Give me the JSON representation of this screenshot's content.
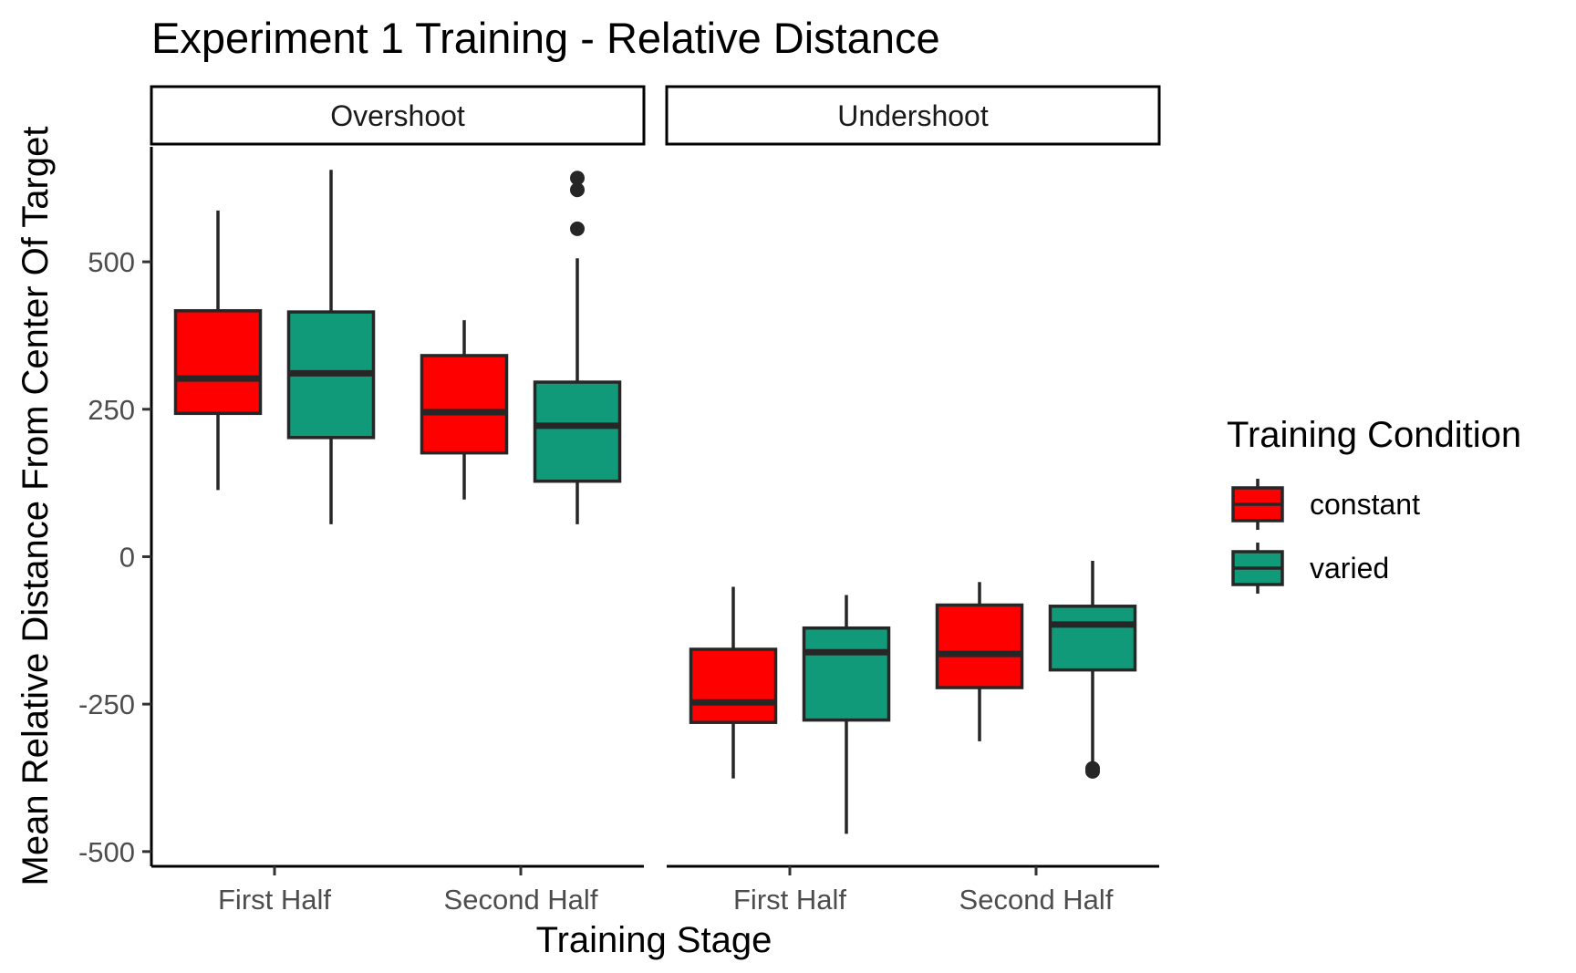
{
  "chart_data": {
    "type": "boxplot",
    "title": "Experiment 1 Training - Relative Distance",
    "xlabel": "Training Stage",
    "ylabel": "Mean Relative Distance From Center Of Target",
    "ylim": [
      -525,
      695
    ],
    "yticks": [
      -500,
      -250,
      0,
      250,
      500
    ],
    "ytick_labels": [
      "-500",
      "-250",
      "0",
      "250",
      "500"
    ],
    "categories": [
      "First Half",
      "Second Half"
    ],
    "grid": false,
    "legend": {
      "title": "Training Condition",
      "position": "right",
      "entries": [
        {
          "name": "constant",
          "color": "#ff0000"
        },
        {
          "name": "varied",
          "color": "#119a79"
        }
      ]
    },
    "panels": [
      {
        "name": "Overshoot",
        "boxes": [
          {
            "category": "First Half",
            "group": "constant",
            "whisker_low": 113,
            "q1": 243,
            "median": 302,
            "q3": 417,
            "whisker_high": 587,
            "outliers": []
          },
          {
            "category": "First Half",
            "group": "varied",
            "whisker_low": 55,
            "q1": 202,
            "median": 311,
            "q3": 415,
            "whisker_high": 656,
            "outliers": []
          },
          {
            "category": "Second Half",
            "group": "constant",
            "whisker_low": 97,
            "q1": 176,
            "median": 245,
            "q3": 341,
            "whisker_high": 401,
            "outliers": []
          },
          {
            "category": "Second Half",
            "group": "varied",
            "whisker_low": 55,
            "q1": 128,
            "median": 222,
            "q3": 296,
            "whisker_high": 506,
            "outliers": [
              556,
              622,
              642
            ]
          }
        ]
      },
      {
        "name": "Undershoot",
        "boxes": [
          {
            "category": "First Half",
            "group": "constant",
            "whisker_low": -376,
            "q1": -281,
            "median": -247,
            "q3": -157,
            "whisker_high": -51,
            "outliers": []
          },
          {
            "category": "First Half",
            "group": "varied",
            "whisker_low": -470,
            "q1": -277,
            "median": -162,
            "q3": -121,
            "whisker_high": -65,
            "outliers": []
          },
          {
            "category": "Second Half",
            "group": "constant",
            "whisker_low": -313,
            "q1": -222,
            "median": -165,
            "q3": -82,
            "whisker_high": -43,
            "outliers": []
          },
          {
            "category": "Second Half",
            "group": "varied",
            "whisker_low": -361,
            "q1": -192,
            "median": -115,
            "q3": -84,
            "whisker_high": -7,
            "outliers": [
              -359,
              -364
            ]
          }
        ]
      }
    ]
  }
}
